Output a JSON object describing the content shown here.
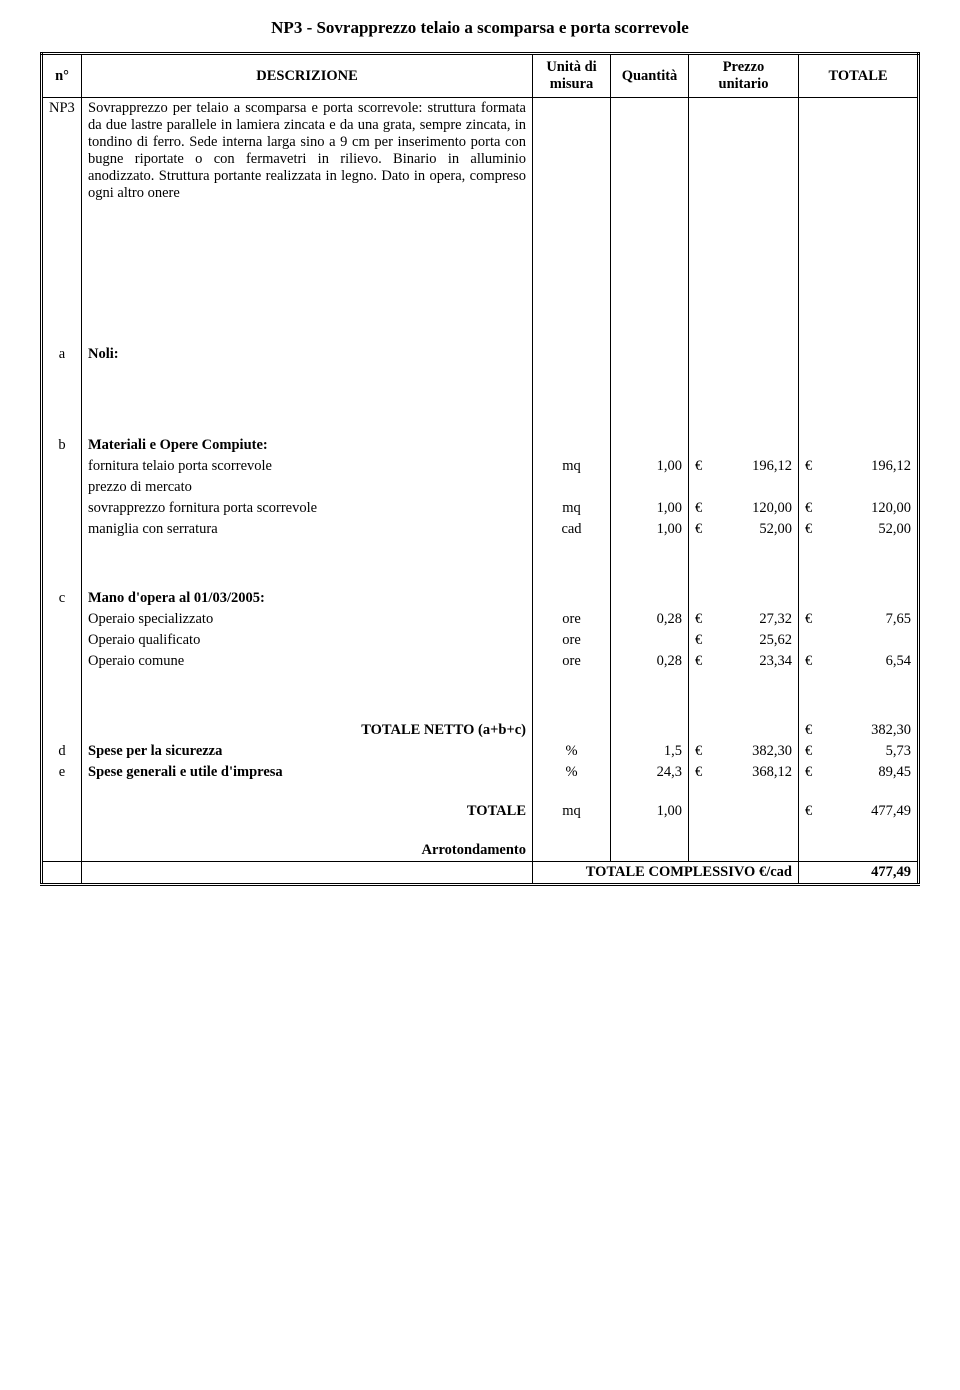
{
  "title": "NP3 - Sovrapprezzo telaio a scomparsa e porta scorrevole",
  "headers": {
    "n": "n°",
    "desc": "DESCRIZIONE",
    "unit1": "Unità di",
    "unit2": "misura",
    "qty": "Quantità",
    "price1": "Prezzo",
    "price2": "unitario",
    "total": "TOTALE"
  },
  "np3": {
    "code": "NP3",
    "text": "Sovrapprezzo per telaio a scomparsa e porta scorrevole: struttura formata da due lastre parallele in lamiera zincata e da una grata, sempre zincata, in tondino di ferro. Sede interna larga sino a 9 cm per inserimento porta con bugne riportate o con fermavetri in rilievo. Binario in alluminio anodizzato. Struttura portante realizzata in legno. Dato in opera, compreso ogni altro onere"
  },
  "sections": {
    "a": {
      "id": "a",
      "label": "Noli:"
    },
    "b": {
      "id": "b",
      "label": "Materiali e Opere Compiute:",
      "rows": [
        {
          "desc": "fornitura telaio porta scorrevole",
          "unit": "mq",
          "qty": "1,00",
          "price": "196,12",
          "total": "196,12"
        },
        {
          "desc": "prezzo di mercato"
        },
        {
          "desc": "sovrapprezzo fornitura porta scorrevole",
          "unit": "mq",
          "qty": "1,00",
          "price": "120,00",
          "total": "120,00"
        },
        {
          "desc": "maniglia con serratura",
          "unit": "cad",
          "qty": "1,00",
          "price": "52,00",
          "total": "52,00"
        }
      ]
    },
    "c": {
      "id": "c",
      "label": "Mano d'opera al 01/03/2005:",
      "rows": [
        {
          "desc": "Operaio specializzato",
          "unit": "ore",
          "qty": "0,28",
          "price": "27,32",
          "total": "7,65"
        },
        {
          "desc": "Operaio qualificato",
          "unit": "ore",
          "qty": "",
          "price": "25,62",
          "total": ""
        },
        {
          "desc": "Operaio comune",
          "unit": "ore",
          "qty": "0,28",
          "price": "23,34",
          "total": "6,54"
        }
      ]
    }
  },
  "totals": {
    "netto_label": "TOTALE NETTO (a+b+c)",
    "netto_val": "382,30",
    "d": {
      "id": "d",
      "label": "Spese per la sicurezza",
      "unit": "%",
      "qty": "1,5",
      "price": "382,30",
      "total": "5,73"
    },
    "e": {
      "id": "e",
      "label": "Spese generali e utile d'impresa",
      "unit": "%",
      "qty": "24,3",
      "price": "368,12",
      "total": "89,45"
    },
    "totale_label": "TOTALE",
    "totale_unit": "mq",
    "totale_qty": "1,00",
    "totale_val": "477,49",
    "arr_label": "Arrotondamento",
    "grand_label": "TOTALE COMPLESSIVO €/cad",
    "grand_val": "477,49"
  },
  "currency": "€"
}
